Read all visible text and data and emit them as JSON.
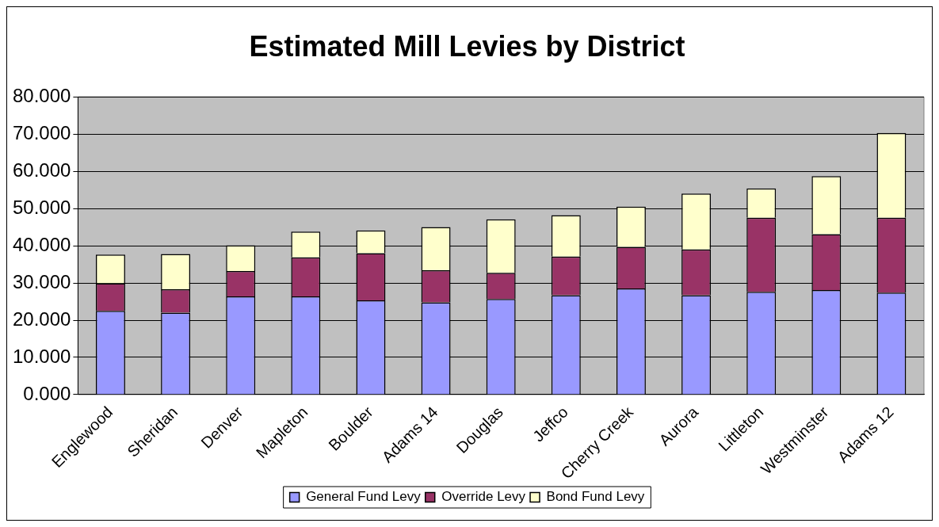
{
  "chart_data": {
    "type": "bar",
    "title": "Estimated Mill Levies by District",
    "stacked": true,
    "categories": [
      "Englewood",
      "Sheridan",
      "Denver",
      "Mapleton",
      "Boulder",
      "Adams 14",
      "Douglas",
      "Jeffco",
      "Cherry Creek",
      "Aurora",
      "Littleton",
      "Westminster",
      "Adams 12"
    ],
    "series": [
      {
        "name": "General Fund Levy",
        "color": "#9999ff",
        "values": [
          22.5,
          22.0,
          26.4,
          26.4,
          25.3,
          24.8,
          25.7,
          26.7,
          28.5,
          26.7,
          27.6,
          28.1,
          27.4
        ]
      },
      {
        "name": "Override Levy",
        "color": "#993366",
        "values": [
          7.4,
          6.3,
          6.8,
          10.5,
          12.7,
          8.6,
          7.0,
          10.4,
          11.2,
          12.3,
          19.9,
          15.0,
          20.1
        ]
      },
      {
        "name": "Bond Fund Levy",
        "color": "#ffffcc",
        "values": [
          7.7,
          9.5,
          6.9,
          6.9,
          6.1,
          11.6,
          14.4,
          11.1,
          10.8,
          15.0,
          7.9,
          15.6,
          22.8
        ]
      }
    ],
    "ylim": [
      0,
      80
    ],
    "yticks": [
      {
        "value": 0,
        "label": "0.000"
      },
      {
        "value": 10,
        "label": "10.000"
      },
      {
        "value": 20,
        "label": "20.000"
      },
      {
        "value": 30,
        "label": "30.000"
      },
      {
        "value": 40,
        "label": "40.000"
      },
      {
        "value": 50,
        "label": "50.000"
      },
      {
        "value": 60,
        "label": "60.000"
      },
      {
        "value": 70,
        "label": "70.000"
      },
      {
        "value": 80,
        "label": "80.000"
      }
    ],
    "grid": "y",
    "legend": "bottom"
  }
}
